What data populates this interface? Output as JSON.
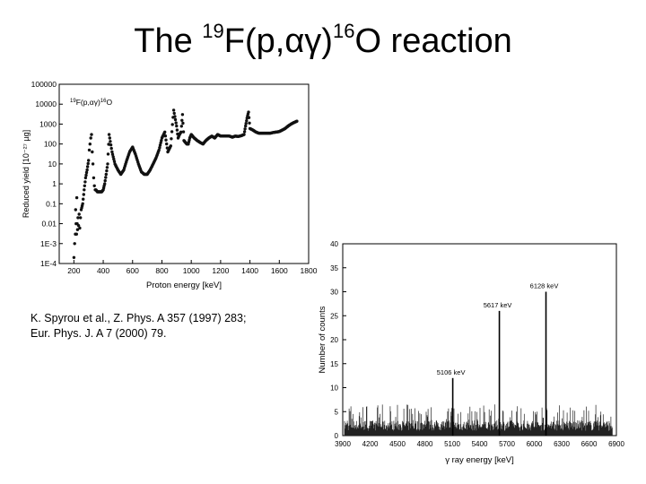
{
  "slide": {
    "title_parts": [
      "The ",
      "19",
      "F(p,αγ)",
      "16",
      "O reaction"
    ],
    "citation_lines": [
      "K. Spyrou et al., Z. Phys. A 357 (1997) 283;",
      "Eur. Phys. J. A 7 (2000) 79."
    ]
  },
  "chart_data": [
    {
      "type": "scatter",
      "log_y": true,
      "annotation_parts": [
        "19",
        "F(p,αγ)",
        "16",
        "O"
      ],
      "xlabel": "Proton energy [keV]",
      "ylabel": "Reduced yield [10⁻²⁷ µg]",
      "xlim": [
        100,
        1800
      ],
      "ylim": [
        0.0001,
        100000
      ],
      "x_ticks": [
        200,
        400,
        600,
        800,
        1000,
        1200,
        1400,
        1600,
        1800
      ],
      "x_tick_labels": [
        "200",
        "400",
        "600",
        "800",
        "1000",
        "1200",
        "1400",
        "1600",
        "1800"
      ],
      "y_ticks": [
        0.0001,
        0.001,
        0.01,
        0.1,
        1,
        10,
        100,
        1000,
        10000,
        100000
      ],
      "y_tick_labels": [
        "1E-4",
        "1E-3",
        "0.01",
        "0.1",
        "1",
        "10",
        "100",
        "1000",
        "10000",
        "100000"
      ],
      "series": [
        {
          "x": [
            200,
            205,
            210,
            212,
            215,
            218,
            220,
            222,
            225,
            228,
            232,
            236,
            240,
            245,
            250,
            260,
            270,
            280,
            290,
            300,
            305,
            310,
            315,
            320,
            325,
            330,
            335,
            340,
            345,
            350,
            360,
            370,
            380,
            390,
            400,
            410,
            420,
            430,
            440,
            460,
            480,
            500,
            520,
            540,
            560,
            580,
            600,
            620,
            640,
            660,
            680,
            700,
            720,
            740,
            760,
            780,
            800,
            820,
            840,
            860,
            880,
            900,
            910,
            920,
            930,
            940,
            950,
            960,
            970,
            980,
            990,
            1000,
            1020,
            1040,
            1060,
            1080,
            1100,
            1120,
            1140,
            1160,
            1180,
            1200,
            1220,
            1240,
            1260,
            1280,
            1300,
            1320,
            1340,
            1360,
            1370,
            1380,
            1390,
            1400,
            1420,
            1440,
            1460,
            1480,
            1500,
            1520,
            1540,
            1560,
            1580,
            1600,
            1620,
            1640,
            1660,
            1680,
            1700,
            1720
          ],
          "y": [
            0.0002,
            0.001,
            0.003,
            0.05,
            0.01,
            0.003,
            0.2,
            0.01,
            0.005,
            0.02,
            0.008,
            0.03,
            0.006,
            0.02,
            0.05,
            0.1,
            0.5,
            2,
            5,
            15,
            50,
            100,
            200,
            300,
            40,
            10,
            2,
            0.8,
            0.5,
            0.5,
            0.4,
            0.4,
            0.4,
            0.4,
            0.5,
            1,
            3,
            10,
            300,
            40,
            10,
            5,
            3,
            5,
            15,
            40,
            70,
            30,
            10,
            4,
            3,
            3,
            5,
            10,
            20,
            50,
            200,
            400,
            40,
            80,
            5000,
            800,
            200,
            300,
            400,
            3000,
            150,
            120,
            100,
            100,
            200,
            300,
            200,
            150,
            120,
            100,
            150,
            200,
            250,
            200,
            300,
            250,
            250,
            250,
            250,
            220,
            250,
            240,
            260,
            300,
            800,
            2000,
            4000,
            600,
            500,
            400,
            350,
            350,
            350,
            350,
            350,
            380,
            400,
            420,
            500,
            600,
            800,
            1000,
            1200,
            1400
          ]
        }
      ]
    },
    {
      "type": "line",
      "xlabel": "γ ray energy [keV]",
      "ylabel": "Number of counts",
      "xlim": [
        3900,
        6900
      ],
      "ylim": [
        0,
        40
      ],
      "x_tick_labels": [
        "3900",
        "4200",
        "4500",
        "4800",
        "5100",
        "5400",
        "5700",
        "6000",
        "6300",
        "6600",
        "6900"
      ],
      "y_tick_labels": [
        "0",
        "5",
        "10",
        "15",
        "20",
        "25",
        "30",
        "35",
        "40"
      ],
      "series": [
        {
          "peaks": [
            {
              "energy": 5106,
              "counts": 12,
              "label": "5106 keV"
            },
            {
              "energy": 5617,
              "counts": 26,
              "label": "5617 keV"
            },
            {
              "energy": 6128,
              "counts": 30,
              "label": "6128 keV"
            }
          ]
        }
      ]
    }
  ]
}
